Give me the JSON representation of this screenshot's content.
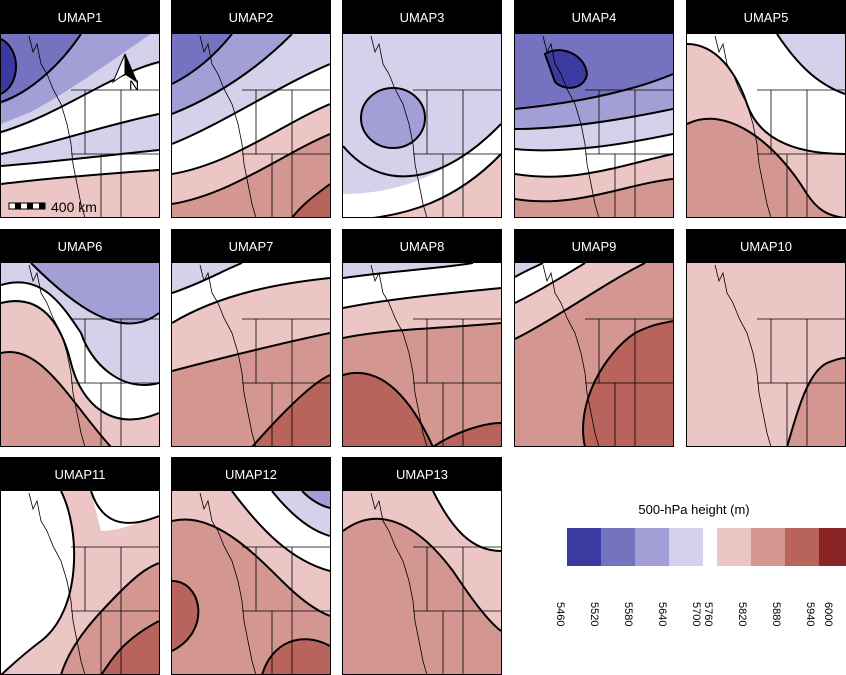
{
  "panels": [
    {
      "label": "UMAP1"
    },
    {
      "label": "UMAP2"
    },
    {
      "label": "UMAP3"
    },
    {
      "label": "UMAP4"
    },
    {
      "label": "UMAP5"
    },
    {
      "label": "UMAP6"
    },
    {
      "label": "UMAP7"
    },
    {
      "label": "UMAP8"
    },
    {
      "label": "UMAP9"
    },
    {
      "label": "UMAP10"
    },
    {
      "label": "UMAP11"
    },
    {
      "label": "UMAP12"
    },
    {
      "label": "UMAP13"
    }
  ],
  "north_arrow": {
    "label": "N"
  },
  "scale_bar": {
    "label": "400 km"
  },
  "legend": {
    "title": "500-hPa height (m)",
    "ticks": [
      "5460",
      "5520",
      "5580",
      "5640",
      "5700",
      "5760",
      "5820",
      "5880",
      "5940",
      "6000"
    ],
    "colors": [
      "#3b3aa0",
      "#7572c0",
      "#a39ed6",
      "#d4d1ea",
      "#ffffff",
      "#ecc6c4",
      "#d49690",
      "#b8645d",
      "#8a2424"
    ]
  }
}
